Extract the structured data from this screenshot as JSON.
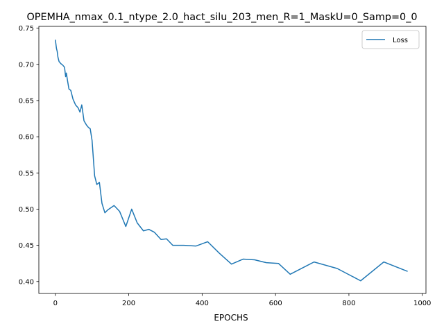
{
  "chart_data": {
    "type": "line",
    "title": "OPEMHA_nmax_0.1_ntype_2.0_hact_silu_203_men_R=1_MaskU=0_Samp=0_0",
    "xlabel": "EPOCHS",
    "ylabel": "",
    "xlim": [
      -45,
      1010
    ],
    "ylim": [
      0.3835,
      0.7525
    ],
    "xticks": [
      0,
      200,
      400,
      600,
      800,
      1000
    ],
    "yticks": [
      0.4,
      0.45,
      0.5,
      0.55,
      0.6,
      0.65,
      0.7,
      0.75
    ],
    "xtick_labels": [
      "0",
      "200",
      "400",
      "600",
      "800",
      "1000"
    ],
    "ytick_labels": [
      "0.40",
      "0.45",
      "0.50",
      "0.55",
      "0.60",
      "0.65",
      "0.70",
      "0.75"
    ],
    "grid": false,
    "legend": {
      "position": "top-right",
      "entries": [
        "Loss"
      ]
    },
    "series": [
      {
        "name": "Loss",
        "color": "#1f77b4",
        "x": [
          0,
          3,
          5,
          7,
          10,
          15,
          20,
          25,
          28,
          30,
          33,
          37,
          42,
          48,
          55,
          62,
          67,
          72,
          78,
          85,
          90,
          95,
          100,
          107,
          113,
          120,
          127,
          135,
          143,
          160,
          175,
          192,
          208,
          223,
          240,
          255,
          270,
          288,
          303,
          320,
          350,
          383,
          415,
          447,
          480,
          512,
          543,
          575,
          608,
          640,
          705,
          768,
          832,
          895,
          960
        ],
        "y": [
          0.734,
          0.722,
          0.718,
          0.71,
          0.704,
          0.701,
          0.699,
          0.696,
          0.683,
          0.688,
          0.678,
          0.666,
          0.664,
          0.652,
          0.644,
          0.64,
          0.634,
          0.644,
          0.622,
          0.616,
          0.613,
          0.611,
          0.595,
          0.546,
          0.534,
          0.537,
          0.508,
          0.495,
          0.499,
          0.505,
          0.497,
          0.476,
          0.5,
          0.481,
          0.47,
          0.472,
          0.468,
          0.458,
          0.459,
          0.45,
          0.45,
          0.449,
          0.455,
          0.439,
          0.424,
          0.431,
          0.43,
          0.426,
          0.425,
          0.41,
          0.427,
          0.418,
          0.401,
          0.427,
          0.414
        ]
      }
    ]
  }
}
